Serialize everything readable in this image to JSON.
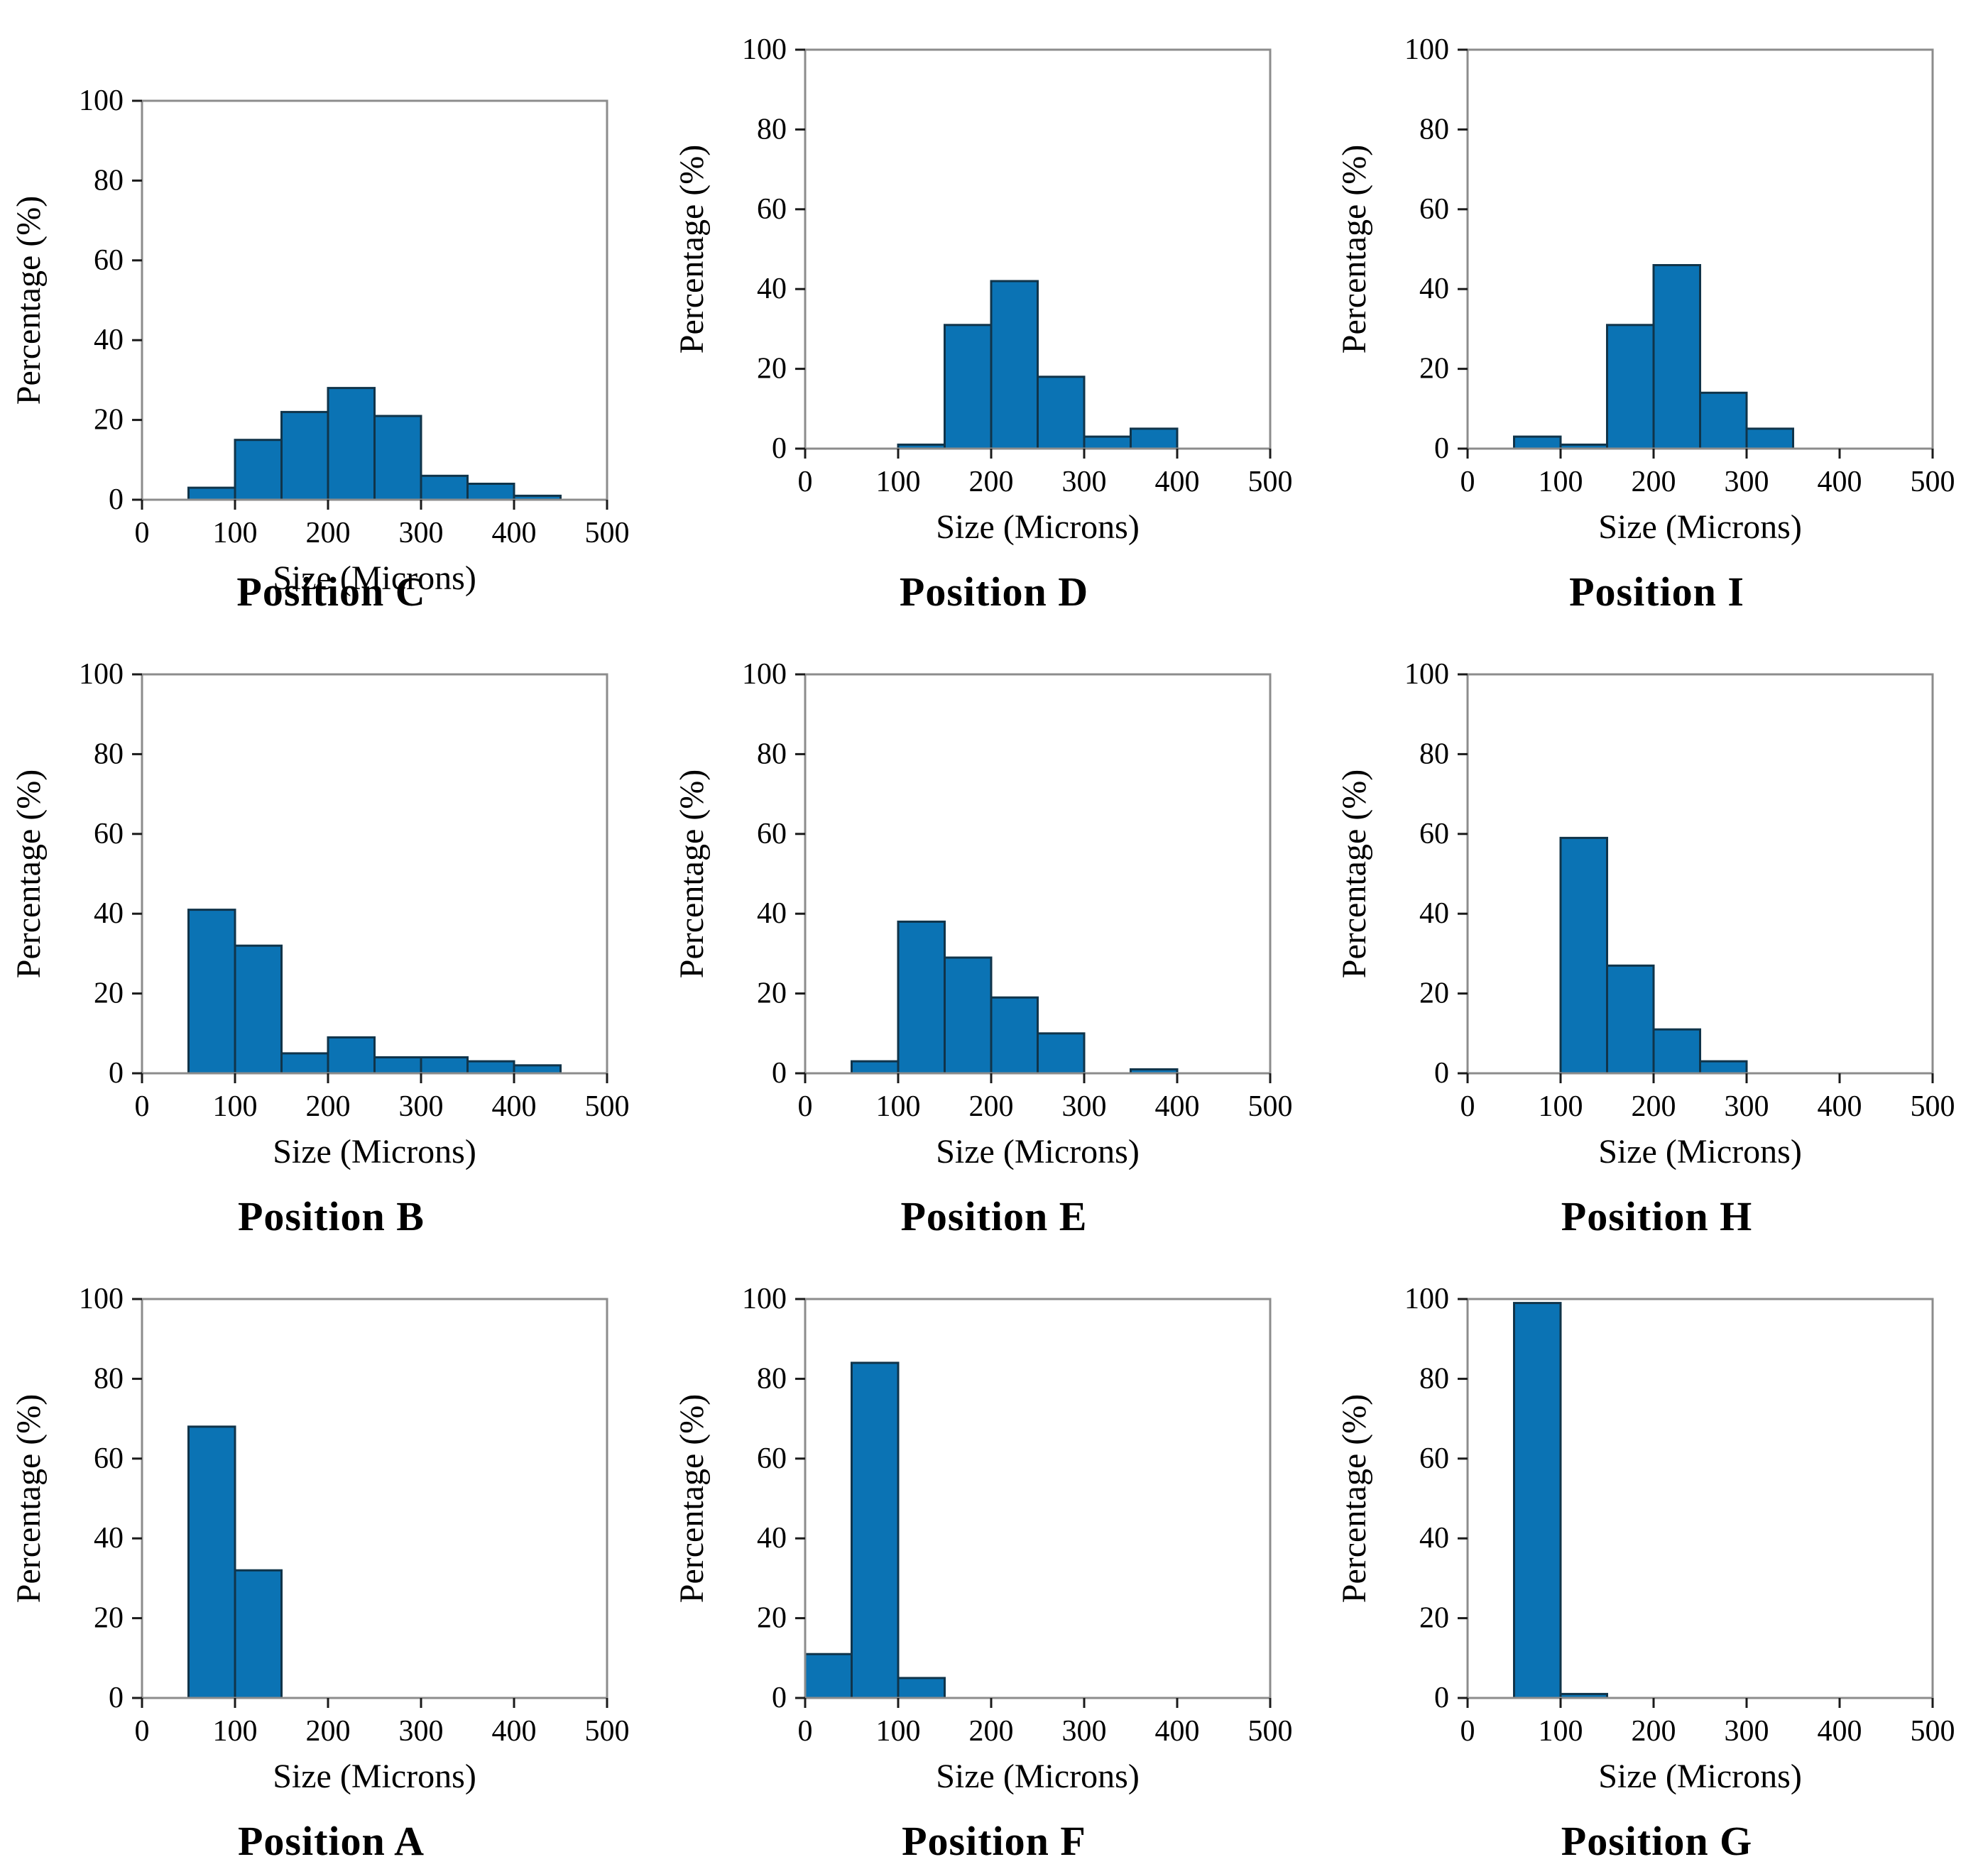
{
  "styles": {
    "background": "#ffffff",
    "bar_color": "#0b73b4",
    "bar_edge_color": "#10344a",
    "spine_color": "#8c8c8c",
    "tick_color": "#1a1a1a",
    "text_color": "#000000"
  },
  "chart_data": [
    {
      "type": "bar",
      "title": "Position C",
      "xlabel": "Size (Microns)",
      "ylabel": "Percentage (%)",
      "xlim": [
        0,
        500
      ],
      "ylim": [
        0,
        100
      ],
      "x_ticks": [
        0,
        100,
        200,
        300,
        400,
        500
      ],
      "y_ticks": [
        0,
        20,
        40,
        60,
        80,
        100
      ],
      "grid": "off",
      "bin_width": 50,
      "bin_starts": [
        50,
        100,
        150,
        200,
        250,
        300,
        350,
        400
      ],
      "values": [
        3,
        15,
        22,
        28,
        21,
        6,
        4,
        1
      ]
    },
    {
      "type": "bar",
      "title": "Position D",
      "xlabel": "Size (Microns)",
      "ylabel": "Percentage (%)",
      "xlim": [
        0,
        500
      ],
      "ylim": [
        0,
        100
      ],
      "x_ticks": [
        0,
        100,
        200,
        300,
        400,
        500
      ],
      "y_ticks": [
        0,
        20,
        40,
        60,
        80,
        100
      ],
      "grid": "off",
      "bin_width": 50,
      "bin_starts": [
        100,
        150,
        200,
        250,
        300,
        350
      ],
      "values": [
        1,
        31,
        42,
        18,
        3,
        5
      ]
    },
    {
      "type": "bar",
      "title": "Position I",
      "xlabel": "Size (Microns)",
      "ylabel": "Percentage (%)",
      "xlim": [
        0,
        500
      ],
      "ylim": [
        0,
        100
      ],
      "x_ticks": [
        0,
        100,
        200,
        300,
        400,
        500
      ],
      "y_ticks": [
        0,
        20,
        40,
        60,
        80,
        100
      ],
      "grid": "off",
      "bin_width": 50,
      "bin_starts": [
        50,
        100,
        150,
        200,
        250,
        300
      ],
      "values": [
        3,
        1,
        31,
        46,
        14,
        5
      ]
    },
    {
      "type": "bar",
      "title": "Position B",
      "xlabel": "Size (Microns)",
      "ylabel": "Percentage (%)",
      "xlim": [
        0,
        500
      ],
      "ylim": [
        0,
        100
      ],
      "x_ticks": [
        0,
        100,
        200,
        300,
        400,
        500
      ],
      "y_ticks": [
        0,
        20,
        40,
        60,
        80,
        100
      ],
      "grid": "off",
      "bin_width": 50,
      "bin_starts": [
        50,
        100,
        150,
        200,
        250,
        300,
        350,
        400
      ],
      "values": [
        41,
        32,
        5,
        9,
        4,
        4,
        3,
        2
      ]
    },
    {
      "type": "bar",
      "title": "Position E",
      "xlabel": "Size (Microns)",
      "ylabel": "Percentage (%)",
      "xlim": [
        0,
        500
      ],
      "ylim": [
        0,
        100
      ],
      "x_ticks": [
        0,
        100,
        200,
        300,
        400,
        500
      ],
      "y_ticks": [
        0,
        20,
        40,
        60,
        80,
        100
      ],
      "grid": "off",
      "bin_width": 50,
      "bin_starts": [
        50,
        100,
        150,
        200,
        250,
        350
      ],
      "values": [
        3,
        38,
        29,
        19,
        10,
        1
      ]
    },
    {
      "type": "bar",
      "title": "Position H",
      "xlabel": "Size (Microns)",
      "ylabel": "Percentage (%)",
      "xlim": [
        0,
        500
      ],
      "ylim": [
        0,
        100
      ],
      "x_ticks": [
        0,
        100,
        200,
        300,
        400,
        500
      ],
      "y_ticks": [
        0,
        20,
        40,
        60,
        80,
        100
      ],
      "grid": "off",
      "bin_width": 50,
      "bin_starts": [
        100,
        150,
        200,
        250
      ],
      "values": [
        59,
        27,
        11,
        3
      ]
    },
    {
      "type": "bar",
      "title": "Position A",
      "xlabel": "Size (Microns)",
      "ylabel": "Percentage (%)",
      "xlim": [
        0,
        500
      ],
      "ylim": [
        0,
        100
      ],
      "x_ticks": [
        0,
        100,
        200,
        300,
        400,
        500
      ],
      "y_ticks": [
        0,
        20,
        40,
        60,
        80,
        100
      ],
      "grid": "off",
      "bin_width": 50,
      "bin_starts": [
        50,
        100
      ],
      "values": [
        68,
        32
      ]
    },
    {
      "type": "bar",
      "title": "Position F",
      "xlabel": "Size (Microns)",
      "ylabel": "Percentage (%)",
      "xlim": [
        0,
        500
      ],
      "ylim": [
        0,
        100
      ],
      "x_ticks": [
        0,
        100,
        200,
        300,
        400,
        500
      ],
      "y_ticks": [
        0,
        20,
        40,
        60,
        80,
        100
      ],
      "grid": "off",
      "bin_width": 50,
      "bin_starts": [
        0,
        50,
        100
      ],
      "values": [
        11,
        84,
        5
      ]
    },
    {
      "type": "bar",
      "title": "Position G",
      "xlabel": "Size (Microns)",
      "ylabel": "Percentage (%)",
      "xlim": [
        0,
        500
      ],
      "ylim": [
        0,
        100
      ],
      "x_ticks": [
        0,
        100,
        200,
        300,
        400,
        500
      ],
      "y_ticks": [
        0,
        20,
        40,
        60,
        80,
        100
      ],
      "grid": "off",
      "bin_width": 50,
      "bin_starts": [
        50,
        100
      ],
      "values": [
        99,
        1
      ]
    }
  ]
}
